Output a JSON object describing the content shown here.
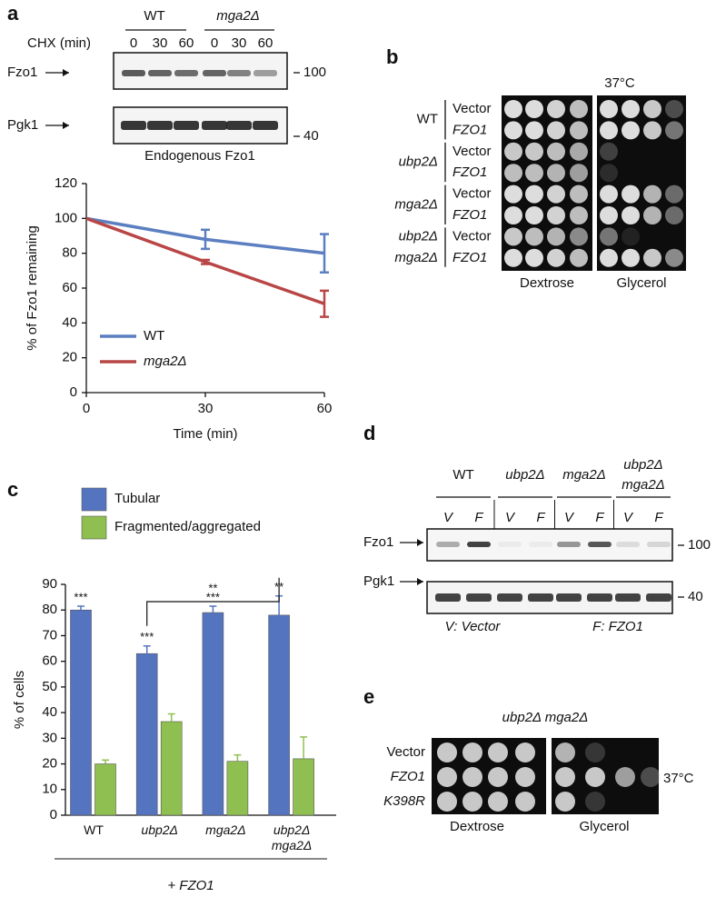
{
  "panels": {
    "a": {
      "letter": "a",
      "group_labels": [
        "WT",
        "mga2Δ"
      ],
      "chx_label": "CHX (min)",
      "lanes": [
        "0",
        "30",
        "60",
        "0",
        "30",
        "60"
      ],
      "blot_labels": [
        "Fzo1",
        "Pgk1"
      ],
      "markers": [
        "100",
        "40"
      ],
      "caption": "Endogenous Fzo1"
    },
    "b": {
      "letter": "b",
      "temperature": "37°C",
      "genotypes": [
        [
          "WT"
        ],
        [
          "ubp2Δ"
        ],
        [
          "mga2Δ"
        ],
        [
          "ubp2Δ",
          "mga2Δ"
        ]
      ],
      "rows": [
        "Vector",
        "FZO1",
        "Vector",
        "FZO1",
        "Vector",
        "FZO1",
        "Vector",
        "FZO1"
      ],
      "plates": [
        "Dextrose",
        "Glycerol"
      ]
    },
    "c": {
      "letter": "c",
      "footer": "+ FZO1"
    },
    "d": {
      "letter": "d",
      "groups": [
        [
          "WT"
        ],
        [
          "ubp2Δ"
        ],
        [
          "mga2Δ"
        ],
        [
          "ubp2Δ",
          "mga2Δ"
        ]
      ],
      "lanes": [
        "V",
        "F",
        "V",
        "F",
        "V",
        "F",
        "V",
        "F"
      ],
      "blot_labels": [
        "Fzo1",
        "Pgk1"
      ],
      "markers": [
        "100",
        "40"
      ],
      "legend": [
        "V: Vector",
        "F: FZO1"
      ]
    },
    "e": {
      "letter": "e",
      "genotype": "ubp2Δ mga2Δ",
      "rows": [
        "Vector",
        "FZO1",
        "K398R"
      ],
      "temperature": "37°C",
      "plates": [
        "Dextrose",
        "Glycerol"
      ]
    }
  },
  "chart_data": [
    {
      "type": "line",
      "xlabel": "Time (min)",
      "ylabel": "% of Fzo1 remaining",
      "x": [
        0,
        30,
        60
      ],
      "xlim": [
        0,
        60
      ],
      "xticks": [
        0,
        30,
        60
      ],
      "ylim": [
        0,
        120
      ],
      "yticks": [
        0,
        20,
        40,
        60,
        80,
        100,
        120
      ],
      "series": [
        {
          "name": "WT",
          "color": "#5b7fc0",
          "values": [
            100,
            88,
            80
          ],
          "errors": [
            0,
            5.5,
            11
          ]
        },
        {
          "name": "mga2Δ",
          "color": "#b94646",
          "values": [
            100,
            75,
            51
          ],
          "errors": [
            0,
            1.2,
            7.5
          ]
        }
      ]
    },
    {
      "type": "bar",
      "ylabel": "% of cells",
      "categories": [
        "WT",
        "ubp2Δ",
        "mga2Δ",
        "ubp2Δ mga2Δ"
      ],
      "ylim": [
        0,
        90
      ],
      "yticks": [
        0,
        10,
        20,
        30,
        40,
        50,
        60,
        70,
        80,
        90
      ],
      "series": [
        {
          "name": "Tubular",
          "color": "#5574c0",
          "values": [
            80,
            63,
            79,
            78
          ],
          "errors": [
            1.5,
            3,
            2.5,
            7.5
          ]
        },
        {
          "name": "Fragmented/aggregated",
          "color": "#8fbf50",
          "values": [
            20,
            36.5,
            21,
            22
          ],
          "errors": [
            1.5,
            3,
            2.5,
            8.5
          ]
        }
      ],
      "annotations": [
        "***",
        "***",
        "***",
        "**"
      ],
      "bracket_label": "**"
    }
  ]
}
